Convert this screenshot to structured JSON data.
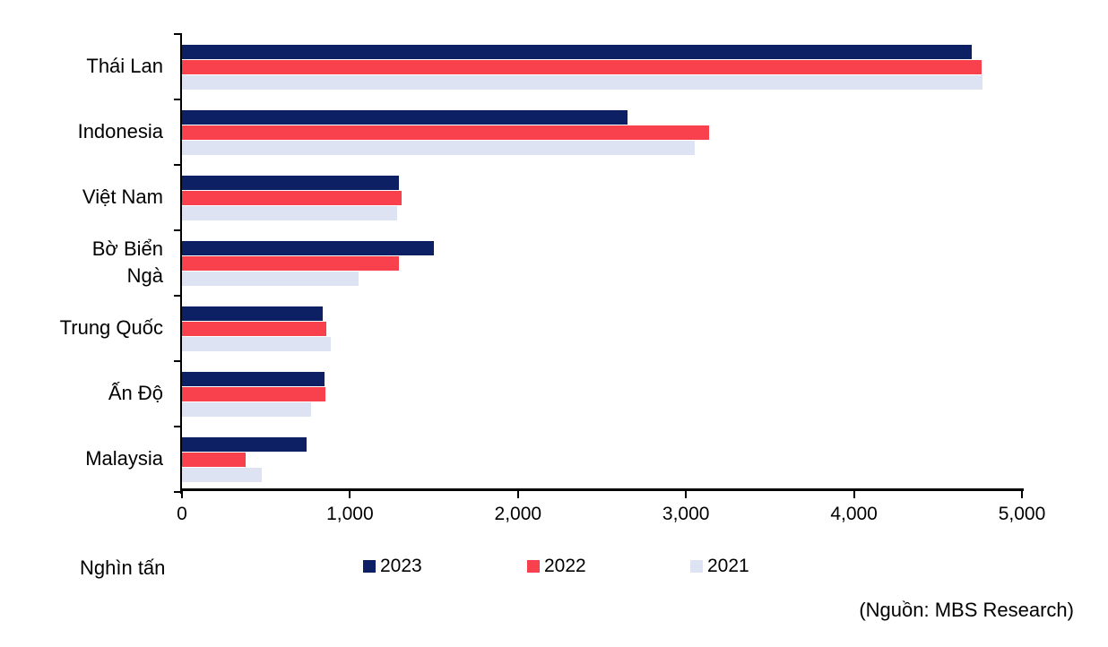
{
  "chart_data": {
    "type": "bar",
    "orientation": "horizontal",
    "title": "",
    "xlabel": "",
    "ylabel": "",
    "unit_label": "Nghìn tấn",
    "source": "(Nguồn: MBS Research)",
    "grid": false,
    "legend_position": "bottom",
    "xlim": [
      0,
      5000
    ],
    "x_ticks": [
      {
        "value": 0,
        "label": "0"
      },
      {
        "value": 1000,
        "label": "1,000"
      },
      {
        "value": 2000,
        "label": "2,000"
      },
      {
        "value": 3000,
        "label": "3,000"
      },
      {
        "value": 4000,
        "label": "4,000"
      },
      {
        "value": 5000,
        "label": "5,000"
      }
    ],
    "categories": [
      "Thái Lan",
      "Indonesia",
      "Việt Nam",
      "Bờ Biển\nNgà",
      "Trung Quốc",
      "Ấn Độ",
      "Malaysia"
    ],
    "series": [
      {
        "name": "2023",
        "color": "#0D2063",
        "values": [
          4700,
          2650,
          1290,
          1500,
          840,
          850,
          740
        ]
      },
      {
        "name": "2022",
        "color": "#F9414E",
        "values": [
          4760,
          3140,
          1305,
          1290,
          860,
          855,
          380
        ]
      },
      {
        "name": "2021",
        "color": "#DEE3F3",
        "values": [
          4765,
          3050,
          1280,
          1050,
          885,
          770,
          475
        ]
      }
    ]
  }
}
